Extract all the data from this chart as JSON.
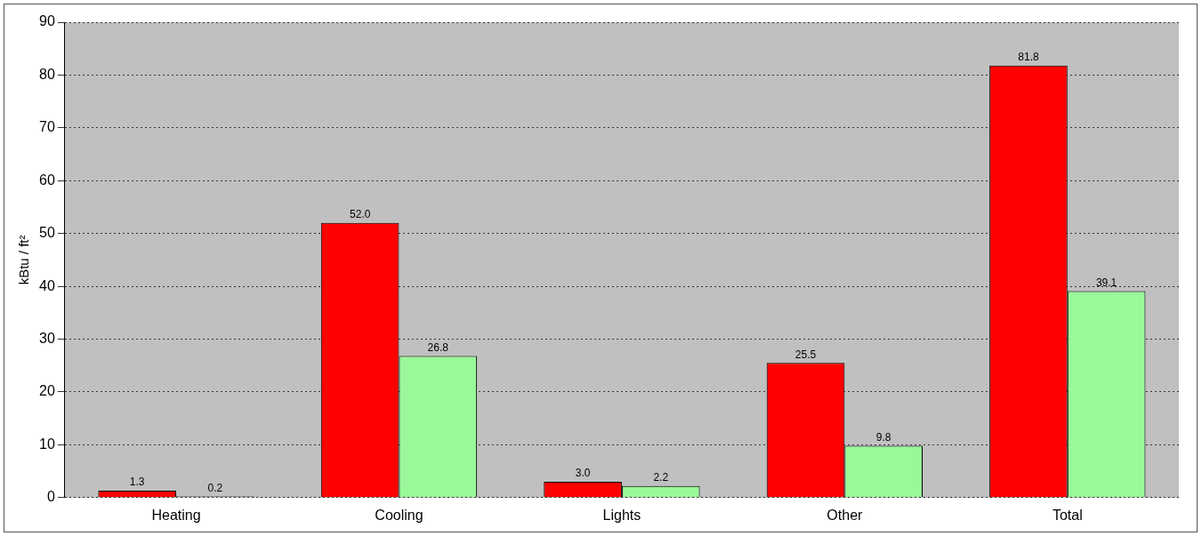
{
  "chart_data": {
    "type": "bar",
    "ylabel": "kBtu / ft²",
    "categories": [
      "Heating",
      "Cooling",
      "Lights",
      "Other",
      "Total"
    ],
    "series": [
      {
        "color": "#ff0000",
        "values": [
          1.3,
          52.0,
          3.0,
          25.5,
          81.8
        ],
        "value_labels": [
          "1.3",
          "52.0",
          "3.0",
          "25.5",
          "81.8"
        ]
      },
      {
        "color": "#99f899",
        "values": [
          0.2,
          26.8,
          2.2,
          9.8,
          39.1
        ],
        "value_labels": [
          "0.2",
          "26.8",
          "2.2",
          "9.8",
          "39.1"
        ]
      }
    ],
    "ylim": [
      0,
      90
    ],
    "yticks": [
      0,
      10,
      20,
      30,
      40,
      50,
      60,
      70,
      80,
      90
    ],
    "grid": "y",
    "line_style": "dotted",
    "legend": false
  }
}
